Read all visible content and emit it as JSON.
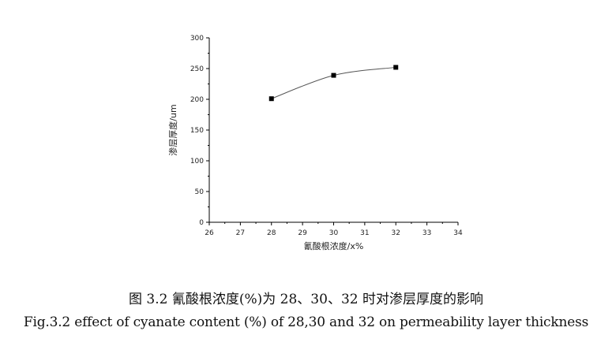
{
  "chart_data": {
    "type": "line",
    "xlabel": "氰酸根浓度/x%",
    "ylabel": "渗层厚度/um",
    "xlim": [
      26,
      34
    ],
    "ylim": [
      0,
      300
    ],
    "xticks": [
      26,
      27,
      28,
      29,
      30,
      31,
      32,
      33,
      34
    ],
    "yticks": [
      0,
      50,
      100,
      150,
      200,
      250,
      300
    ],
    "series": [
      {
        "x": [
          28,
          30,
          32
        ],
        "y": [
          201,
          239,
          252
        ],
        "marker": "square",
        "line": "smooth"
      }
    ],
    "grid": false,
    "colors": {
      "marker": "#000000",
      "line": "#555555",
      "axis": "#000000"
    }
  },
  "captions": {
    "cn": "图 3.2  氰酸根浓度(%)为 28、30、32 时对渗层厚度的影响",
    "en": "Fig.3.2 effect of cyanate content (%) of 28,30 and 32 on permeability layer thickness"
  }
}
